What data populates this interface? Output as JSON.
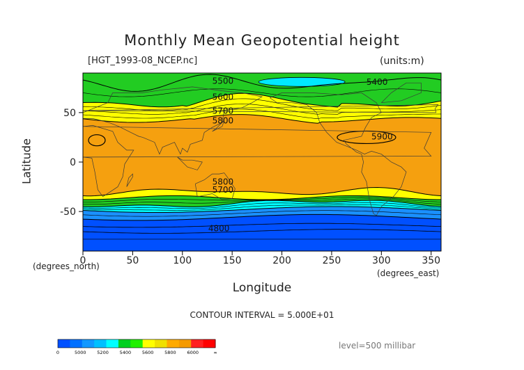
{
  "title": "Monthly Mean Geopotential height",
  "file_label": "[HGT_1993-08_NCEP.nc]",
  "units_label": "(units:m)",
  "contour_interval": "CONTOUR INTERVAL = 5.000E+01",
  "level_label": "level=500 millibar",
  "chart_data": {
    "type": "heatmap",
    "title": "Monthly Mean Geopotential height",
    "xlabel": "Longitude",
    "ylabel": "Latitude",
    "x_unit": "(degrees_east)",
    "y_unit": "(degrees_north)",
    "xlim": [
      0,
      360
    ],
    "ylim": [
      -90,
      90
    ],
    "x_ticks": [
      0,
      50,
      100,
      150,
      200,
      250,
      300,
      350
    ],
    "y_ticks": [
      50,
      0,
      -50
    ],
    "x_tick_labels": [
      "0",
      "50",
      "100",
      "150",
      "200",
      "250",
      "300",
      "350"
    ],
    "y_tick_labels": [
      "50",
      "0",
      "-50"
    ],
    "contour_interval": 50,
    "contour_labels": [
      {
        "text": "5500",
        "lon": 130,
        "lat": 79
      },
      {
        "text": "5400",
        "lon": 285,
        "lat": 78
      },
      {
        "text": "5600",
        "lon": 130,
        "lat": 63
      },
      {
        "text": "5700",
        "lon": 130,
        "lat": 49
      },
      {
        "text": "5800",
        "lon": 130,
        "lat": 39
      },
      {
        "text": "5900",
        "lon": 290,
        "lat": 23
      },
      {
        "text": "5800",
        "lon": 130,
        "lat": -23
      },
      {
        "text": "5700",
        "lon": 130,
        "lat": -31
      },
      {
        "text": "4800",
        "lon": 126,
        "lat": -70
      }
    ],
    "colorbar": {
      "ticks": [
        "0",
        "5000",
        "5200",
        "5400",
        "5600",
        "5800",
        "6000",
        "∞"
      ],
      "colors": [
        "#0050ff",
        "#0070ff",
        "#1298ff",
        "#00c0ff",
        "#00ffff",
        "#00d020",
        "#20f000",
        "#ffff00",
        "#f0e000",
        "#ffaa00",
        "#f59a00",
        "#ff2020",
        "#ff0000"
      ]
    },
    "bands": [
      {
        "name": "z5400",
        "color": "#00e8ff"
      },
      {
        "name": "z5500",
        "color": "#22cc22"
      },
      {
        "name": "z5600",
        "color": "#ffff00"
      },
      {
        "name": "z5800",
        "color": "#f5a00f"
      },
      {
        "name": "z5700s",
        "color": "#ffff00"
      },
      {
        "name": "z5500s",
        "color": "#22cc22"
      },
      {
        "name": "z5300s",
        "color": "#00ffff"
      },
      {
        "name": "z5100s",
        "color": "#1a90ff"
      },
      {
        "name": "z4900s",
        "color": "#0050ff"
      }
    ]
  }
}
